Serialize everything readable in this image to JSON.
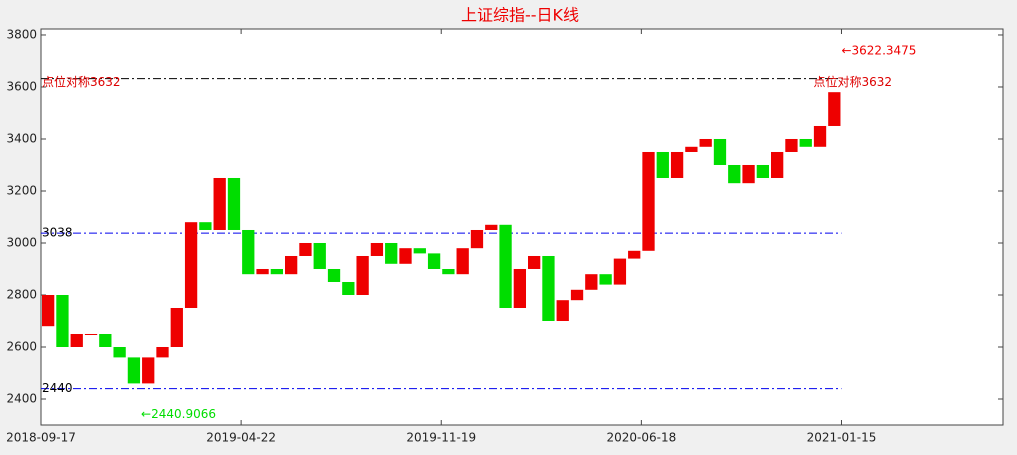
{
  "chart_data": {
    "type": "candlestick",
    "title": "上证综指--日K线",
    "x": [
      0,
      10,
      20,
      30,
      40,
      50,
      60,
      70,
      80,
      90,
      100,
      110,
      120,
      130,
      140,
      150,
      160,
      170,
      180,
      190,
      200,
      210,
      220,
      230,
      240,
      250,
      260,
      270,
      280,
      290,
      300,
      310,
      320,
      330,
      340,
      350,
      360,
      370,
      380,
      390,
      400,
      410,
      420,
      430,
      440,
      450,
      460,
      470,
      480,
      490,
      500,
      510,
      520,
      530,
      540,
      550,
      560
    ],
    "values": [
      2680,
      2800,
      2600,
      2650,
      2650,
      2600,
      2560,
      2460,
      2560,
      2600,
      2750,
      3080,
      3050,
      3250,
      3050,
      2880,
      2900,
      2880,
      2950,
      3000,
      2900,
      2850,
      2800,
      2950,
      3000,
      2920,
      2980,
      2960,
      2900,
      2880,
      2980,
      3050,
      3070,
      2750,
      2900,
      2950,
      2700,
      2780,
      2820,
      2880,
      2840,
      2940,
      2970,
      3350,
      3250,
      3350,
      3370,
      3400,
      3300,
      3230,
      3300,
      3250,
      3350,
      3400,
      3370,
      3450,
      3580
    ],
    "up_color": "#ee0000",
    "down_color": "#00dd00",
    "xlim": [
      0,
      673
    ],
    "xticks": [
      {
        "value": 0,
        "label": "2018-09-17"
      },
      {
        "value": 140,
        "label": "2019-04-22"
      },
      {
        "value": 280,
        "label": "2019-11-19"
      },
      {
        "value": 420,
        "label": "2020-06-18"
      },
      {
        "value": 560,
        "label": "2021-01-15"
      }
    ],
    "ylim": [
      2300,
      3823
    ],
    "yticks": [
      2400,
      2600,
      2800,
      3000,
      3200,
      3400,
      3600,
      3800
    ],
    "reference_lines": [
      {
        "value": 3632,
        "color": "#000000",
        "labels": [
          "点位对称3632",
          "点位对称3632"
        ],
        "label_color": "#dd0000"
      },
      {
        "value": 3038,
        "color": "#0000ee",
        "labels": [
          "3038"
        ],
        "label_color": "#000000"
      },
      {
        "value": 2440,
        "color": "#0000ee",
        "labels": [
          "2440"
        ],
        "label_color": "#000000"
      }
    ],
    "annotations": [
      {
        "text": "←3622.3475",
        "value": 3622.3475,
        "x": 560,
        "color": "#ee0000"
      },
      {
        "text": "←2440.9066",
        "value": 2440.9066,
        "x": 70,
        "color": "#00dd00"
      }
    ]
  }
}
